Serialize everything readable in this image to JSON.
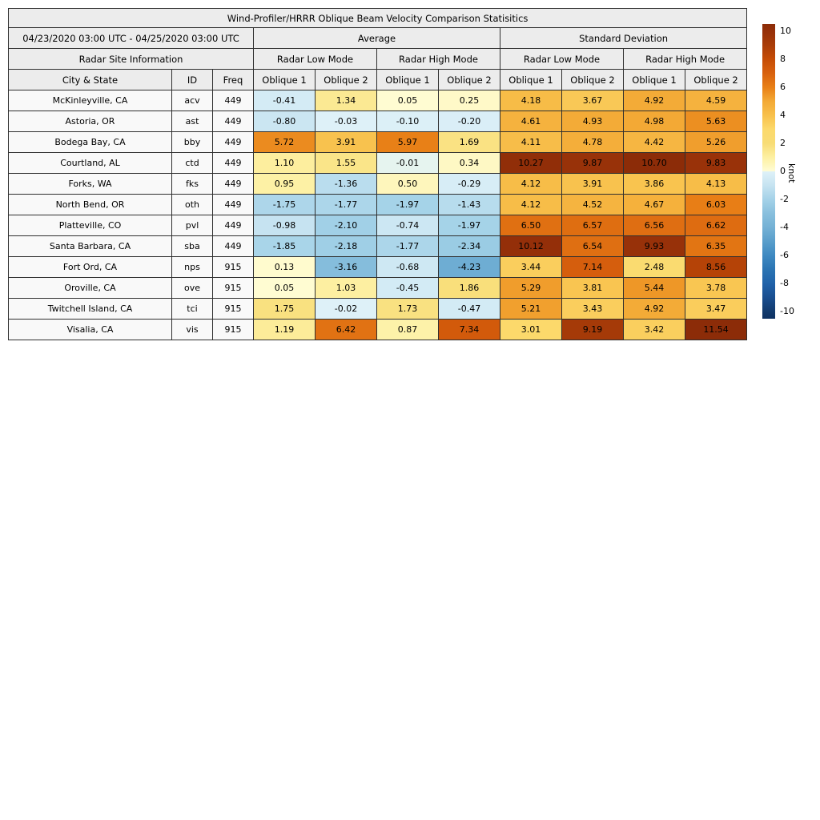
{
  "chart_data": {
    "type": "table",
    "title": "Wind-Profiler/HRRR Oblique Beam Velocity Comparison Statisitics",
    "date_range": "04/23/2020 03:00 UTC - 04/25/2020 03:00 UTC",
    "section_headers": {
      "site_info": "Radar Site Information",
      "average": "Average",
      "std_dev": "Standard Deviation"
    },
    "mode_headers": [
      "Radar Low Mode",
      "Radar High Mode",
      "Radar Low Mode",
      "Radar High Mode"
    ],
    "column_headers": [
      "City & State",
      "ID",
      "Freq"
    ],
    "oblique_headers": [
      "Oblique 1",
      "Oblique 2",
      "Oblique 1",
      "Oblique 2",
      "Oblique 1",
      "Oblique 2",
      "Oblique 1",
      "Oblique 2"
    ],
    "rows": [
      {
        "city": "McKinleyville, CA",
        "id": "acv",
        "freq": "449",
        "values": [
          -0.41,
          1.34,
          0.05,
          0.25,
          4.18,
          3.67,
          4.92,
          4.59
        ]
      },
      {
        "city": "Astoria, OR",
        "id": "ast",
        "freq": "449",
        "values": [
          -0.8,
          -0.03,
          -0.1,
          -0.2,
          4.61,
          4.93,
          4.98,
          5.63
        ]
      },
      {
        "city": "Bodega Bay, CA",
        "id": "bby",
        "freq": "449",
        "values": [
          5.72,
          3.91,
          5.97,
          1.69,
          4.11,
          4.78,
          4.42,
          5.26
        ]
      },
      {
        "city": "Courtland, AL",
        "id": "ctd",
        "freq": "449",
        "values": [
          1.1,
          1.55,
          -0.01,
          0.34,
          10.27,
          9.87,
          10.7,
          9.83
        ]
      },
      {
        "city": "Forks, WA",
        "id": "fks",
        "freq": "449",
        "values": [
          0.95,
          -1.36,
          0.5,
          -0.29,
          4.12,
          3.91,
          3.86,
          4.13
        ]
      },
      {
        "city": "North Bend, OR",
        "id": "oth",
        "freq": "449",
        "values": [
          -1.75,
          -1.77,
          -1.97,
          -1.43,
          4.12,
          4.52,
          4.67,
          6.03
        ]
      },
      {
        "city": "Platteville, CO",
        "id": "pvl",
        "freq": "449",
        "values": [
          -0.98,
          -2.1,
          -0.74,
          -1.97,
          6.5,
          6.57,
          6.56,
          6.62
        ]
      },
      {
        "city": "Santa Barbara, CA",
        "id": "sba",
        "freq": "449",
        "values": [
          -1.85,
          -2.18,
          -1.77,
          -2.34,
          10.12,
          6.54,
          9.93,
          6.35
        ]
      },
      {
        "city": "Fort Ord, CA",
        "id": "nps",
        "freq": "915",
        "values": [
          0.13,
          -3.16,
          -0.68,
          -4.23,
          3.44,
          7.14,
          2.48,
          8.56
        ]
      },
      {
        "city": "Oroville, CA",
        "id": "ove",
        "freq": "915",
        "values": [
          0.05,
          1.03,
          -0.45,
          1.86,
          5.29,
          3.81,
          5.44,
          3.78
        ]
      },
      {
        "city": "Twitchell Island, CA",
        "id": "tci",
        "freq": "915",
        "values": [
          1.75,
          -0.02,
          1.73,
          -0.47,
          5.21,
          3.43,
          4.92,
          3.47
        ]
      },
      {
        "city": "Visalia, CA",
        "id": "vis",
        "freq": "915",
        "values": [
          1.19,
          6.42,
          0.87,
          7.34,
          3.01,
          9.19,
          3.42,
          11.54
        ]
      }
    ],
    "colorbar": {
      "label": "knot",
      "min": -10,
      "max": 10,
      "ticks": [
        10,
        8,
        6,
        4,
        2,
        0,
        -2,
        -4,
        -6,
        -8,
        -10
      ],
      "colormap_anchors": [
        [
          -10.5,
          "#0e3161"
        ],
        [
          -10,
          "#123a6d"
        ],
        [
          -9,
          "#194e90"
        ],
        [
          -8,
          "#2062a9"
        ],
        [
          -7,
          "#2b74b3"
        ],
        [
          -6,
          "#3e89c1"
        ],
        [
          -5,
          "#599ecb"
        ],
        [
          -4,
          "#74b1d5"
        ],
        [
          -3,
          "#88bfdd"
        ],
        [
          -2,
          "#a4d2e8"
        ],
        [
          -1,
          "#c6e3f1"
        ],
        [
          -0.02,
          "#def1f8"
        ],
        [
          0.02,
          "#fffcd4"
        ],
        [
          1,
          "#fdf0a2"
        ],
        [
          2,
          "#f8dc75"
        ],
        [
          3,
          "#fcd96b"
        ],
        [
          4,
          "#f8c04b"
        ],
        [
          5,
          "#f3a935"
        ],
        [
          6,
          "#e87f16"
        ],
        [
          7,
          "#d8610e"
        ],
        [
          8,
          "#c54c06"
        ],
        [
          9,
          "#a93c08"
        ],
        [
          10,
          "#963009"
        ],
        [
          10.5,
          "#8c2c08"
        ]
      ]
    },
    "colors": {
      "header_bg": "#ececec",
      "label_bg": "#f9f9f9",
      "border": "#2f2f2f",
      "text": "#000000"
    }
  }
}
